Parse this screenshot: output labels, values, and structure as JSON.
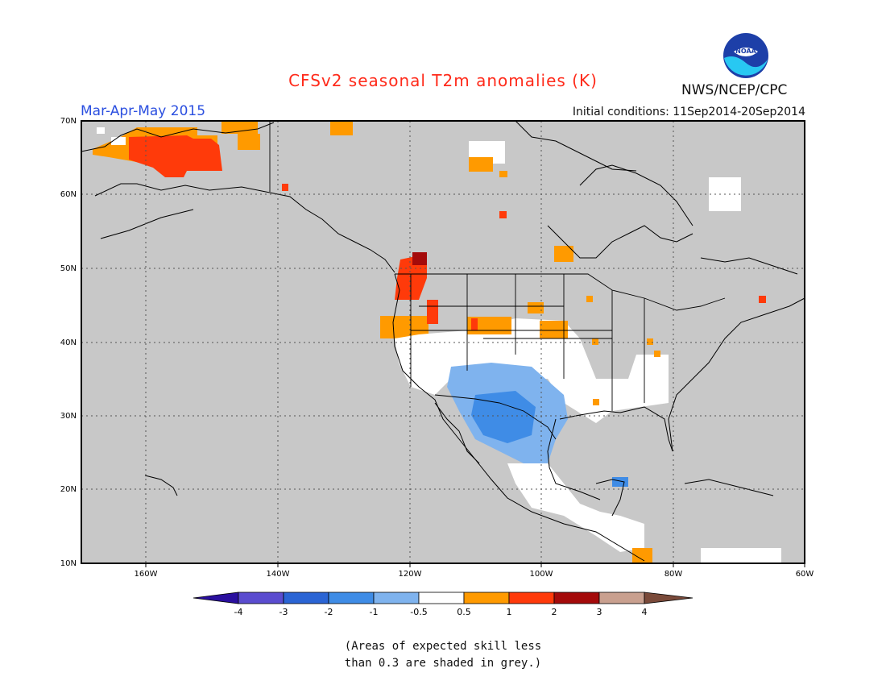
{
  "header": {
    "title": "CFSv2 seasonal T2m anomalies (K)",
    "season": "Mar-Apr-May 2015",
    "initial_conditions": "Initial conditions: 11Sep2014-20Sep2014",
    "organization": "NWS/NCEP/CPC",
    "logo_text": "NOAA"
  },
  "axes": {
    "lat_labels": [
      "70N",
      "60N",
      "50N",
      "40N",
      "30N",
      "20N",
      "10N"
    ],
    "lon_labels": [
      "160W",
      "140W",
      "120W",
      "100W",
      "80W",
      "60W"
    ]
  },
  "colorbar": {
    "tick_labels": [
      "-4",
      "-3",
      "-2",
      "-1",
      "-0.5",
      "0.5",
      "1",
      "2",
      "3",
      "4"
    ],
    "colors": [
      "#2a0f9e",
      "#5a4ccf",
      "#2a64d4",
      "#3f8ce6",
      "#7fb3ee",
      "#ffffff",
      "#ff9a00",
      "#ff3a0a",
      "#a40a0a",
      "#c9a08f",
      "#7a4a3a"
    ]
  },
  "caption": {
    "line1": "(Areas of expected skill less",
    "line2": "than 0.3 are shaded in grey.)"
  }
}
